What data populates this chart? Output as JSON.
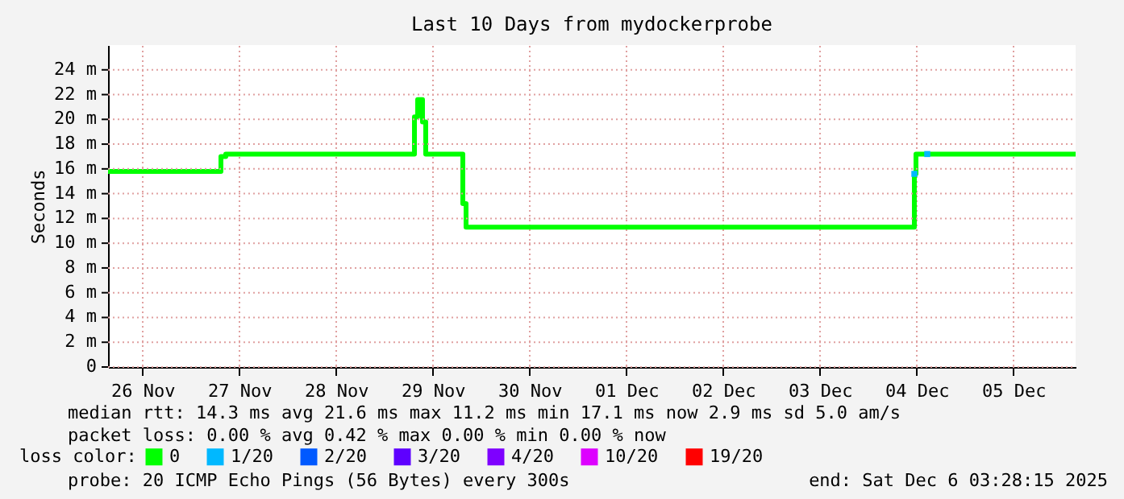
{
  "chart_data": {
    "type": "step",
    "title": "Last 10 Days from mydockerprobe",
    "ylabel": "Seconds",
    "xlim": [
      "2025-11-26T03:28",
      "2025-12-06T03:28"
    ],
    "xticks": [
      {
        "value": "2025-11-26T12:00",
        "label": "26 Nov"
      },
      {
        "value": "2025-11-27T12:00",
        "label": "27 Nov"
      },
      {
        "value": "2025-11-28T12:00",
        "label": "28 Nov"
      },
      {
        "value": "2025-11-29T12:00",
        "label": "29 Nov"
      },
      {
        "value": "2025-11-30T12:00",
        "label": "30 Nov"
      },
      {
        "value": "2025-12-01T12:00",
        "label": "01 Dec"
      },
      {
        "value": "2025-12-02T12:00",
        "label": "02 Dec"
      },
      {
        "value": "2025-12-03T12:00",
        "label": "03 Dec"
      },
      {
        "value": "2025-12-04T12:00",
        "label": "04 Dec"
      },
      {
        "value": "2025-12-05T12:00",
        "label": "05 Dec"
      }
    ],
    "ylim": [
      0,
      26
    ],
    "yticks": [
      0,
      {
        "value": 2,
        "label": "2 m"
      },
      {
        "value": 4,
        "label": "4 m"
      },
      {
        "value": 6,
        "label": "6 m"
      },
      {
        "value": 8,
        "label": "8 m"
      },
      {
        "value": 10,
        "label": "10 m"
      },
      {
        "value": 12,
        "label": "12 m"
      },
      {
        "value": 14,
        "label": "14 m"
      },
      {
        "value": 16,
        "label": "16 m"
      },
      {
        "value": 18,
        "label": "18 m"
      },
      {
        "value": 20,
        "label": "20 m"
      },
      {
        "value": 22,
        "label": "22 m"
      },
      {
        "value": 24,
        "label": "24 m"
      }
    ],
    "grid": true,
    "legend": "bottom",
    "legend_title": "loss color:",
    "series": [
      {
        "name": "0",
        "color": "#00ff00",
        "x": [
          "2025-11-26T03:28",
          "2025-11-27T07:28",
          "2025-11-27T08:40",
          "2025-11-29T07:28",
          "2025-11-29T08:16",
          "2025-11-29T09:28",
          "2025-11-29T10:16",
          "2025-11-29T19:28",
          "2025-11-29T20:16",
          "2025-12-04T11:28",
          "2025-12-04T11:52",
          "2025-12-06T03:28"
        ],
        "values": [
          15.8,
          17.0,
          17.2,
          20.2,
          21.6,
          19.8,
          17.2,
          13.2,
          11.3,
          15.6,
          17.2,
          17.2
        ]
      },
      {
        "name": "1/20",
        "color": "#00b8ff",
        "type": "scatter",
        "x": [
          "2025-12-04T11:28",
          "2025-12-04T14:40"
        ],
        "values": [
          15.6,
          17.2
        ]
      },
      {
        "name": "2/20",
        "color": "#0059ff",
        "type": "scatter"
      },
      {
        "name": "3/20",
        "color": "#5e00ff",
        "type": "scatter"
      },
      {
        "name": "4/20",
        "color": "#7e00ff",
        "type": "scatter"
      },
      {
        "name": "10/20",
        "color": "#dd00ff",
        "type": "scatter"
      },
      {
        "name": "19/20",
        "color": "#ff0000",
        "type": "scatter"
      }
    ],
    "annotations": [
      "median rtt:  14.3 ms avg  21.6 ms max  11.2 ms min  17.1 ms now  2.9 ms sd  5.0   am/s",
      "packet loss: 0.00 % avg  0.42 % max  0.00 % min  0.00 % now",
      "probe:       20 ICMP Echo Pings (56 Bytes) every 300s",
      "end: Sat Dec  6 03:28:15 2025"
    ]
  }
}
